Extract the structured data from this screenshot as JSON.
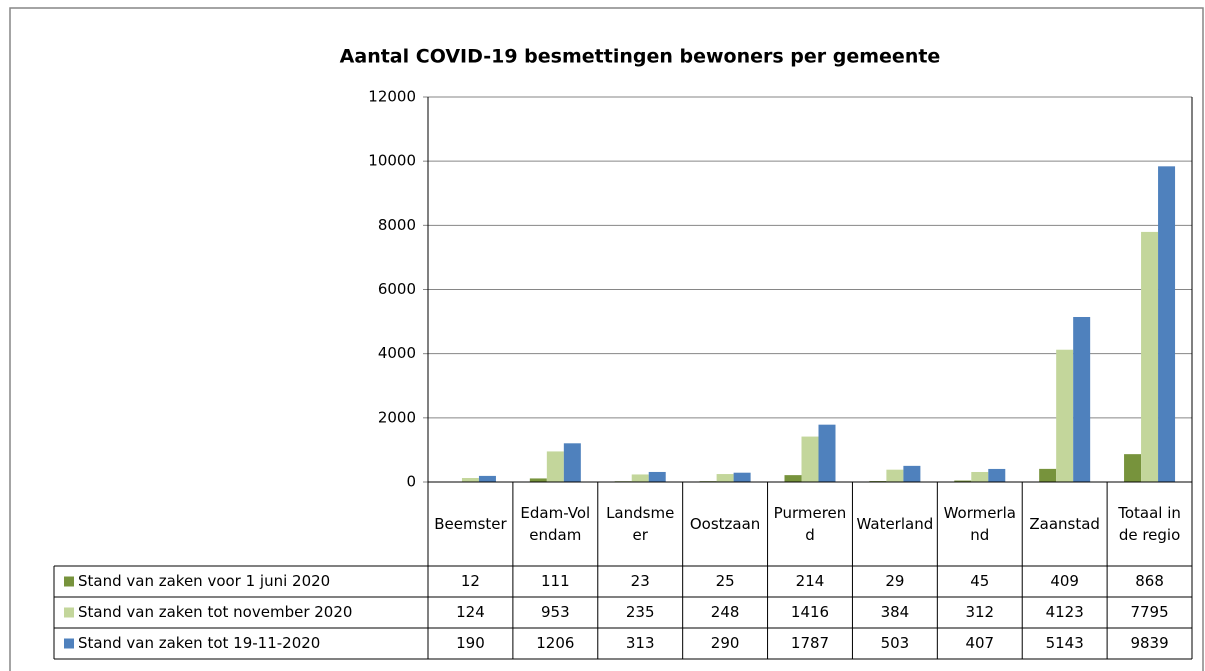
{
  "chart_data": {
    "type": "bar",
    "title": "Aantal COVID-19 besmettingen bewoners per gemeente",
    "categories": [
      "Beemster",
      "Edam-Volendam",
      "Landsmeer",
      "Oostzaan",
      "Purmerend",
      "Waterland",
      "Wormerland",
      "Zaanstad",
      "Totaal in de regio"
    ],
    "series": [
      {
        "name": "Stand van zaken voor 1 juni 2020",
        "color": "#77933c",
        "values": [
          12,
          111,
          23,
          25,
          214,
          29,
          45,
          409,
          868
        ]
      },
      {
        "name": "Stand van zaken tot november 2020",
        "color": "#c3d69b",
        "values": [
          124,
          953,
          235,
          248,
          1416,
          384,
          312,
          4123,
          7795
        ]
      },
      {
        "name": "Stand van zaken tot 19-11-2020",
        "color": "#4f81bd",
        "values": [
          190,
          1206,
          313,
          290,
          1787,
          503,
          407,
          5143,
          9839
        ]
      }
    ],
    "ylim": [
      0,
      12000
    ],
    "yticks": [
      0,
      2000,
      4000,
      6000,
      8000,
      10000,
      12000
    ],
    "grid": true
  }
}
